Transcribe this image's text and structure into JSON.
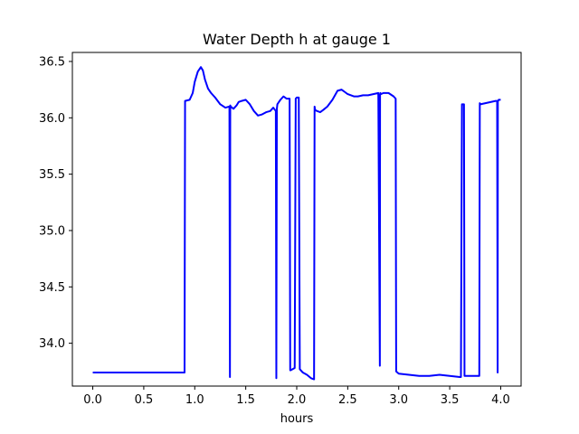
{
  "chart_data": {
    "type": "line",
    "title": "Water Depth h at gauge 1",
    "xlabel": "hours",
    "ylabel": "",
    "xlim": [
      -0.2,
      4.2
    ],
    "ylim": [
      33.62,
      36.58
    ],
    "x_ticks": [
      0.0,
      0.5,
      1.0,
      1.5,
      2.0,
      2.5,
      3.0,
      3.5,
      4.0
    ],
    "x_tick_labels": [
      "0.0",
      "0.5",
      "1.0",
      "1.5",
      "2.0",
      "2.5",
      "3.0",
      "3.5",
      "4.0"
    ],
    "y_ticks": [
      34.0,
      34.5,
      35.0,
      35.5,
      36.0,
      36.5
    ],
    "y_tick_labels": [
      "34.0",
      "34.5",
      "35.0",
      "35.5",
      "36.0",
      "36.5"
    ],
    "grid": false,
    "legend": "none",
    "series": [
      {
        "color": "#0000ff",
        "x": [
          0.0,
          0.3,
          0.6,
          0.8,
          0.9,
          0.905,
          0.95,
          0.98,
          1.0,
          1.03,
          1.06,
          1.08,
          1.1,
          1.13,
          1.16,
          1.2,
          1.25,
          1.3,
          1.34,
          1.345,
          1.348,
          1.352,
          1.38,
          1.41,
          1.43,
          1.46,
          1.5,
          1.54,
          1.58,
          1.62,
          1.66,
          1.7,
          1.74,
          1.77,
          1.795,
          1.8,
          1.805,
          1.81,
          1.84,
          1.87,
          1.9,
          1.93,
          1.936,
          1.94,
          1.98,
          1.99,
          2.0,
          2.02,
          2.03,
          2.06,
          2.1,
          2.14,
          2.17,
          2.175,
          2.18,
          2.2,
          2.23,
          2.26,
          2.3,
          2.35,
          2.4,
          2.44,
          2.47,
          2.5,
          2.53,
          2.56,
          2.6,
          2.65,
          2.7,
          2.75,
          2.8,
          2.815,
          2.817,
          2.82,
          2.825,
          2.85,
          2.9,
          2.95,
          2.97,
          2.975,
          3.0,
          3.1,
          3.2,
          3.3,
          3.4,
          3.5,
          3.6,
          3.61,
          3.62,
          3.64,
          3.645,
          3.65,
          3.7,
          3.75,
          3.79,
          3.795,
          3.8,
          3.85,
          3.9,
          3.95,
          3.965,
          3.97,
          3.972,
          3.975,
          3.98,
          4.0
        ],
        "y": [
          33.74,
          33.74,
          33.74,
          33.74,
          33.74,
          36.15,
          36.16,
          36.22,
          36.32,
          36.41,
          36.45,
          36.42,
          36.34,
          36.26,
          36.22,
          36.18,
          36.12,
          36.09,
          36.1,
          33.7,
          36.11,
          36.1,
          36.08,
          36.11,
          36.14,
          36.15,
          36.16,
          36.12,
          36.06,
          36.02,
          36.03,
          36.05,
          36.06,
          36.09,
          36.06,
          33.69,
          36.08,
          36.12,
          36.16,
          36.19,
          36.17,
          36.17,
          33.76,
          33.76,
          33.78,
          36.17,
          36.18,
          36.18,
          33.77,
          33.74,
          33.72,
          33.69,
          33.68,
          36.1,
          36.07,
          36.06,
          36.05,
          36.07,
          36.1,
          36.16,
          36.24,
          36.25,
          36.23,
          36.21,
          36.2,
          36.19,
          36.19,
          36.2,
          36.2,
          36.21,
          36.22,
          33.8,
          36.2,
          36.22,
          36.21,
          36.22,
          36.22,
          36.19,
          36.17,
          33.75,
          33.73,
          33.72,
          33.71,
          33.71,
          33.72,
          33.71,
          33.7,
          33.7,
          36.12,
          36.12,
          33.71,
          33.71,
          33.71,
          33.71,
          33.71,
          36.13,
          36.12,
          36.13,
          36.14,
          36.15,
          36.15,
          33.74,
          36.15,
          36.15,
          36.16,
          36.16
        ]
      }
    ]
  }
}
